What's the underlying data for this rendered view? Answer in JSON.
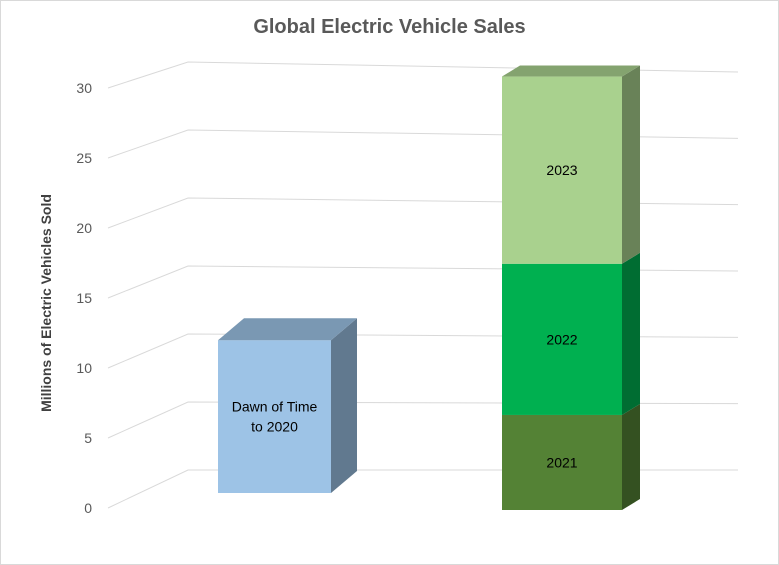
{
  "chart_data": {
    "type": "bar",
    "title": "Global Electric Vehicle Sales",
    "ylabel": "Millions of Electric Vehicles Sold",
    "ylim": [
      0,
      30
    ],
    "yticks": [
      "0",
      "5",
      "10",
      "15",
      "20",
      "25",
      "30"
    ],
    "grid": true,
    "legend": "none",
    "stacks": [
      {
        "segments": [
          {
            "label": "Dawn of Time to 2020",
            "label_lines": [
              "Dawn of Time",
              "to 2020"
            ],
            "value": 10.5,
            "color": "#9dc3e6"
          }
        ]
      },
      {
        "segments": [
          {
            "label": "2021",
            "label_lines": [
              "2021"
            ],
            "value": 6.6,
            "color": "#548235"
          },
          {
            "label": "2022",
            "label_lines": [
              "2022"
            ],
            "value": 10.5,
            "color": "#00b050"
          },
          {
            "label": "2023",
            "label_lines": [
              "2023"
            ],
            "value": 13.0,
            "color": "#a9d18e"
          }
        ]
      }
    ]
  }
}
